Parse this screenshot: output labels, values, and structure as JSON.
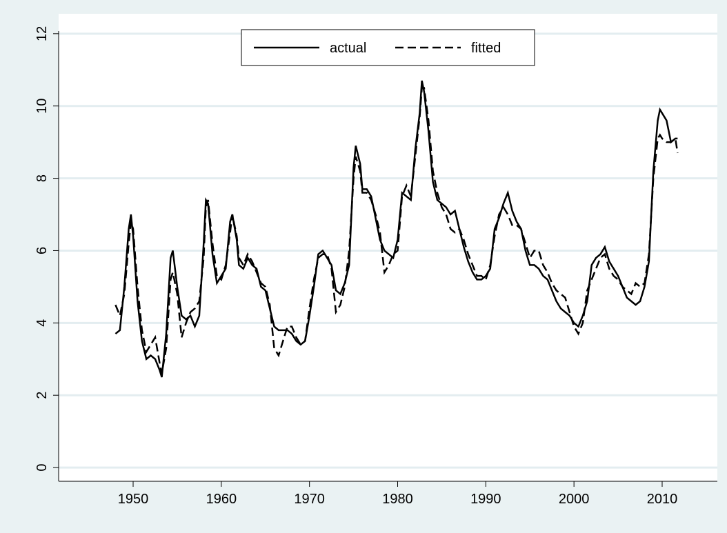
{
  "chart_data": {
    "type": "line",
    "x": [
      1948.0,
      1948.5,
      1949.0,
      1949.5,
      1949.75,
      1950.0,
      1950.5,
      1951.0,
      1951.5,
      1952.0,
      1952.5,
      1953.0,
      1953.25,
      1953.75,
      1954.25,
      1954.5,
      1955.0,
      1955.5,
      1956.0,
      1956.5,
      1957.0,
      1957.5,
      1958.0,
      1958.25,
      1958.5,
      1959.0,
      1959.5,
      1960.0,
      1960.5,
      1961.0,
      1961.25,
      1961.75,
      1962.0,
      1962.5,
      1963.0,
      1963.5,
      1964.0,
      1964.5,
      1965.0,
      1965.5,
      1966.0,
      1966.5,
      1967.0,
      1967.5,
      1968.0,
      1968.5,
      1969.0,
      1969.5,
      1970.0,
      1970.5,
      1971.0,
      1971.5,
      1972.0,
      1972.5,
      1973.0,
      1973.5,
      1974.0,
      1974.5,
      1975.0,
      1975.25,
      1975.75,
      1976.0,
      1976.5,
      1977.0,
      1977.5,
      1978.0,
      1978.5,
      1979.0,
      1979.5,
      1980.0,
      1980.5,
      1981.0,
      1981.5,
      1982.0,
      1982.5,
      1982.75,
      1983.0,
      1983.5,
      1984.0,
      1984.5,
      1985.0,
      1985.5,
      1986.0,
      1986.5,
      1987.0,
      1987.5,
      1988.0,
      1988.5,
      1989.0,
      1989.5,
      1990.0,
      1990.5,
      1991.0,
      1991.5,
      1992.0,
      1992.5,
      1993.0,
      1993.5,
      1994.0,
      1994.5,
      1995.0,
      1995.5,
      1996.0,
      1996.5,
      1997.0,
      1997.5,
      1998.0,
      1998.5,
      1999.0,
      1999.5,
      2000.0,
      2000.5,
      2001.0,
      2001.5,
      2002.0,
      2002.5,
      2003.0,
      2003.5,
      2004.0,
      2004.5,
      2005.0,
      2005.5,
      2006.0,
      2006.5,
      2007.0,
      2007.5,
      2008.0,
      2008.5,
      2009.0,
      2009.5,
      2009.75,
      2010.0,
      2010.5,
      2011.0,
      2011.5,
      2011.75
    ],
    "series": [
      {
        "name": "actual",
        "color": "#000000",
        "line_style": "solid",
        "values": [
          3.7,
          3.8,
          5.0,
          6.6,
          7.0,
          6.4,
          4.6,
          3.5,
          3.0,
          3.1,
          3.0,
          2.7,
          2.5,
          3.7,
          5.8,
          6.0,
          5.0,
          4.2,
          4.1,
          4.2,
          3.9,
          4.2,
          6.2,
          7.4,
          7.3,
          5.9,
          5.1,
          5.3,
          5.5,
          6.8,
          7.0,
          6.3,
          5.6,
          5.5,
          5.8,
          5.6,
          5.5,
          5.0,
          4.9,
          4.4,
          3.9,
          3.8,
          3.8,
          3.8,
          3.7,
          3.5,
          3.4,
          3.5,
          4.2,
          5.0,
          5.9,
          6.0,
          5.8,
          5.6,
          4.9,
          4.8,
          5.1,
          5.6,
          8.3,
          8.9,
          8.4,
          7.7,
          7.7,
          7.5,
          6.9,
          6.3,
          6.0,
          5.9,
          5.8,
          6.3,
          7.6,
          7.5,
          7.4,
          8.8,
          9.8,
          10.7,
          10.4,
          9.3,
          7.9,
          7.4,
          7.3,
          7.2,
          7.0,
          7.1,
          6.6,
          6.1,
          5.7,
          5.4,
          5.2,
          5.2,
          5.3,
          5.5,
          6.6,
          6.9,
          7.3,
          7.6,
          7.1,
          6.8,
          6.6,
          6.0,
          5.6,
          5.6,
          5.5,
          5.3,
          5.2,
          4.9,
          4.6,
          4.4,
          4.3,
          4.2,
          4.0,
          3.9,
          4.2,
          4.6,
          5.6,
          5.8,
          5.9,
          6.1,
          5.7,
          5.5,
          5.3,
          5.0,
          4.7,
          4.6,
          4.5,
          4.6,
          5.0,
          5.7,
          8.2,
          9.6,
          9.9,
          9.8,
          9.6,
          9.0,
          9.1,
          9.1
        ]
      },
      {
        "name": "fitted",
        "color": "#000000",
        "line_style": "dashed",
        "values": [
          4.5,
          4.2,
          4.8,
          6.2,
          6.8,
          6.6,
          5.0,
          3.8,
          3.2,
          3.4,
          3.6,
          2.9,
          2.6,
          3.3,
          5.2,
          5.4,
          4.8,
          3.6,
          4.0,
          4.3,
          4.4,
          4.6,
          5.8,
          7.2,
          7.4,
          6.2,
          5.3,
          5.2,
          5.6,
          6.5,
          7.0,
          6.4,
          5.8,
          5.6,
          5.9,
          5.7,
          5.4,
          5.1,
          5.0,
          4.5,
          3.3,
          3.1,
          3.5,
          3.9,
          3.9,
          3.6,
          3.4,
          3.5,
          4.4,
          5.2,
          5.8,
          5.9,
          5.9,
          5.5,
          4.3,
          4.5,
          5.0,
          6.0,
          8.0,
          8.6,
          8.2,
          7.6,
          7.6,
          7.4,
          7.0,
          6.5,
          5.4,
          5.6,
          5.9,
          6.0,
          7.5,
          7.8,
          7.5,
          8.6,
          9.7,
          10.5,
          10.5,
          9.6,
          8.2,
          7.6,
          7.2,
          7.0,
          6.6,
          6.5,
          6.6,
          6.3,
          5.9,
          5.6,
          5.3,
          5.3,
          5.2,
          5.6,
          6.4,
          7.0,
          7.2,
          7.0,
          6.7,
          6.7,
          6.6,
          6.2,
          5.8,
          6.0,
          6.0,
          5.6,
          5.4,
          5.1,
          4.9,
          4.8,
          4.7,
          4.3,
          3.9,
          3.7,
          4.0,
          4.9,
          5.2,
          5.5,
          5.8,
          5.9,
          5.5,
          5.3,
          5.2,
          5.0,
          4.9,
          4.8,
          5.1,
          5.0,
          5.1,
          5.9,
          8.0,
          9.1,
          9.2,
          9.1,
          9.0,
          9.0,
          9.1,
          8.7
        ]
      }
    ],
    "xlim": [
      1941.55,
      2016.26
    ],
    "xticks": [
      1950,
      1960,
      1970,
      1980,
      1990,
      2000,
      2010
    ],
    "ylim": [
      -0.38,
      12.55
    ],
    "yticks": [
      0,
      2,
      4,
      6,
      8,
      10,
      12
    ],
    "grid": true,
    "legend": "top"
  }
}
